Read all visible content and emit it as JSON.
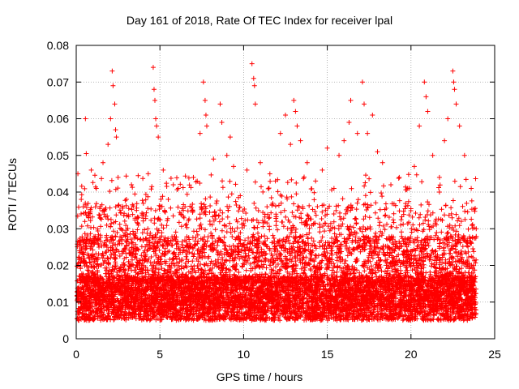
{
  "chart_data": {
    "type": "scatter",
    "title": "Day 161 of 2018, Rate Of TEC Index for receiver lpal",
    "xlabel": "GPS time / hours",
    "ylabel": "ROTI / TECUs",
    "xlim": [
      0,
      25
    ],
    "ylim": [
      0,
      0.08
    ],
    "xticks": [
      0,
      5,
      10,
      15,
      20,
      25
    ],
    "xtick_labels": [
      "0",
      "5",
      "10",
      "15",
      "20",
      "25"
    ],
    "yticks": [
      0,
      0.01,
      0.02,
      0.03,
      0.04,
      0.05,
      0.06,
      0.07,
      0.08
    ],
    "ytick_labels": [
      "0",
      "0.01",
      "0.02",
      "0.03",
      "0.04",
      "0.05",
      "0.06",
      "0.07",
      "0.08"
    ],
    "grid": true,
    "marker": "+",
    "color": "#ff0000",
    "series": [
      {
        "points": [
          [
            0.1,
            0.045
          ],
          [
            0.3,
            0.038
          ],
          [
            0.55,
            0.06
          ],
          [
            0.6,
            0.0505
          ],
          [
            0.9,
            0.046
          ],
          [
            1.2,
            0.041
          ],
          [
            1.6,
            0.048
          ],
          [
            1.9,
            0.053
          ],
          [
            2.05,
            0.06
          ],
          [
            2.15,
            0.073
          ],
          [
            2.2,
            0.069
          ],
          [
            2.3,
            0.064
          ],
          [
            2.35,
            0.057
          ],
          [
            2.4,
            0.055
          ],
          [
            2.5,
            0.044
          ],
          [
            3.0,
            0.038
          ],
          [
            3.3,
            0.042
          ],
          [
            3.6,
            0.035
          ],
          [
            4.0,
            0.034
          ],
          [
            4.3,
            0.045
          ],
          [
            4.6,
            0.074
          ],
          [
            4.65,
            0.068
          ],
          [
            4.7,
            0.065
          ],
          [
            4.75,
            0.06
          ],
          [
            4.8,
            0.058
          ],
          [
            4.9,
            0.055
          ],
          [
            5.2,
            0.046
          ],
          [
            5.5,
            0.038
          ],
          [
            5.8,
            0.042
          ],
          [
            6.1,
            0.041
          ],
          [
            6.5,
            0.036
          ],
          [
            7.0,
            0.044
          ],
          [
            7.4,
            0.056
          ],
          [
            7.6,
            0.07
          ],
          [
            7.7,
            0.065
          ],
          [
            7.75,
            0.061
          ],
          [
            7.8,
            0.058
          ],
          [
            8.2,
            0.049
          ],
          [
            8.6,
            0.064
          ],
          [
            8.7,
            0.059
          ],
          [
            9.0,
            0.05
          ],
          [
            9.2,
            0.055
          ],
          [
            9.4,
            0.047
          ],
          [
            9.8,
            0.039
          ],
          [
            10.2,
            0.046
          ],
          [
            10.5,
            0.075
          ],
          [
            10.6,
            0.071
          ],
          [
            10.65,
            0.069
          ],
          [
            10.7,
            0.064
          ],
          [
            11.0,
            0.048
          ],
          [
            11.4,
            0.036
          ],
          [
            11.9,
            0.043
          ],
          [
            12.2,
            0.056
          ],
          [
            12.5,
            0.061
          ],
          [
            12.8,
            0.053
          ],
          [
            13.0,
            0.065
          ],
          [
            13.1,
            0.062
          ],
          [
            13.2,
            0.058
          ],
          [
            13.4,
            0.054
          ],
          [
            13.8,
            0.048
          ],
          [
            14.3,
            0.043
          ],
          [
            14.7,
            0.046
          ],
          [
            15.0,
            0.052
          ],
          [
            15.4,
            0.041
          ],
          [
            15.7,
            0.05
          ],
          [
            16.0,
            0.054
          ],
          [
            16.3,
            0.059
          ],
          [
            16.4,
            0.065
          ],
          [
            16.8,
            0.056
          ],
          [
            17.1,
            0.07
          ],
          [
            17.2,
            0.064
          ],
          [
            17.4,
            0.056
          ],
          [
            17.7,
            0.061
          ],
          [
            18.0,
            0.051
          ],
          [
            18.3,
            0.048
          ],
          [
            18.8,
            0.042
          ],
          [
            19.3,
            0.044
          ],
          [
            19.8,
            0.041
          ],
          [
            20.2,
            0.047
          ],
          [
            20.5,
            0.058
          ],
          [
            20.8,
            0.07
          ],
          [
            20.9,
            0.066
          ],
          [
            21.0,
            0.062
          ],
          [
            21.3,
            0.05
          ],
          [
            21.7,
            0.044
          ],
          [
            22.0,
            0.054
          ],
          [
            22.2,
            0.06
          ],
          [
            22.5,
            0.073
          ],
          [
            22.55,
            0.07
          ],
          [
            22.6,
            0.068
          ],
          [
            22.7,
            0.064
          ],
          [
            22.9,
            0.058
          ],
          [
            23.2,
            0.05
          ],
          [
            23.6,
            0.041
          ],
          [
            23.9,
            0.03
          ]
        ]
      }
    ]
  }
}
